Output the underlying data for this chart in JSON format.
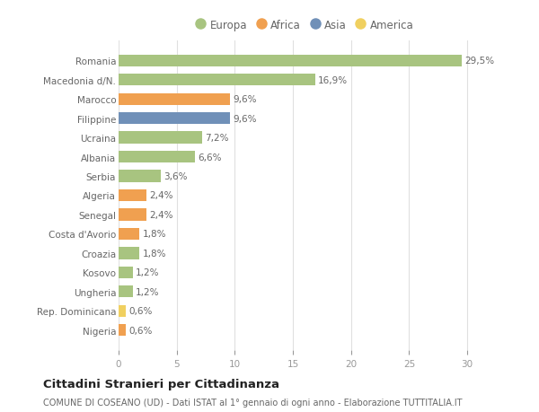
{
  "categories": [
    "Nigeria",
    "Rep. Dominicana",
    "Ungheria",
    "Kosovo",
    "Croazia",
    "Costa d'Avorio",
    "Senegal",
    "Algeria",
    "Serbia",
    "Albania",
    "Ucraina",
    "Filippine",
    "Marocco",
    "Macedonia d/N.",
    "Romania"
  ],
  "values": [
    0.6,
    0.6,
    1.2,
    1.2,
    1.8,
    1.8,
    2.4,
    2.4,
    3.6,
    6.6,
    7.2,
    9.6,
    9.6,
    16.9,
    29.5
  ],
  "colors": [
    "#f0a050",
    "#f0d060",
    "#a8c480",
    "#a8c480",
    "#a8c480",
    "#f0a050",
    "#f0a050",
    "#f0a050",
    "#a8c480",
    "#a8c480",
    "#a8c480",
    "#7090b8",
    "#f0a050",
    "#a8c480",
    "#a8c480"
  ],
  "bar_labels": [
    "0,6%",
    "0,6%",
    "1,2%",
    "1,2%",
    "1,8%",
    "1,8%",
    "2,4%",
    "2,4%",
    "3,6%",
    "6,6%",
    "7,2%",
    "9,6%",
    "9,6%",
    "16,9%",
    "29,5%"
  ],
  "legend_labels": [
    "Europa",
    "Africa",
    "Asia",
    "America"
  ],
  "legend_colors": [
    "#a8c480",
    "#f0a050",
    "#7090b8",
    "#f0d060"
  ],
  "title": "Cittadini Stranieri per Cittadinanza",
  "subtitle": "COMUNE DI COSEANO (UD) - Dati ISTAT al 1° gennaio di ogni anno - Elaborazione TUTTITALIA.IT",
  "xlim": [
    0,
    32
  ],
  "xticks": [
    0,
    5,
    10,
    15,
    20,
    25,
    30
  ],
  "background_color": "#ffffff",
  "grid_color": "#e0e0e0",
  "bar_height": 0.62,
  "label_fontsize": 7.5,
  "title_fontsize": 9.5,
  "subtitle_fontsize": 7.0,
  "tick_fontsize": 7.5,
  "legend_fontsize": 8.5,
  "ytick_fontsize": 7.5
}
